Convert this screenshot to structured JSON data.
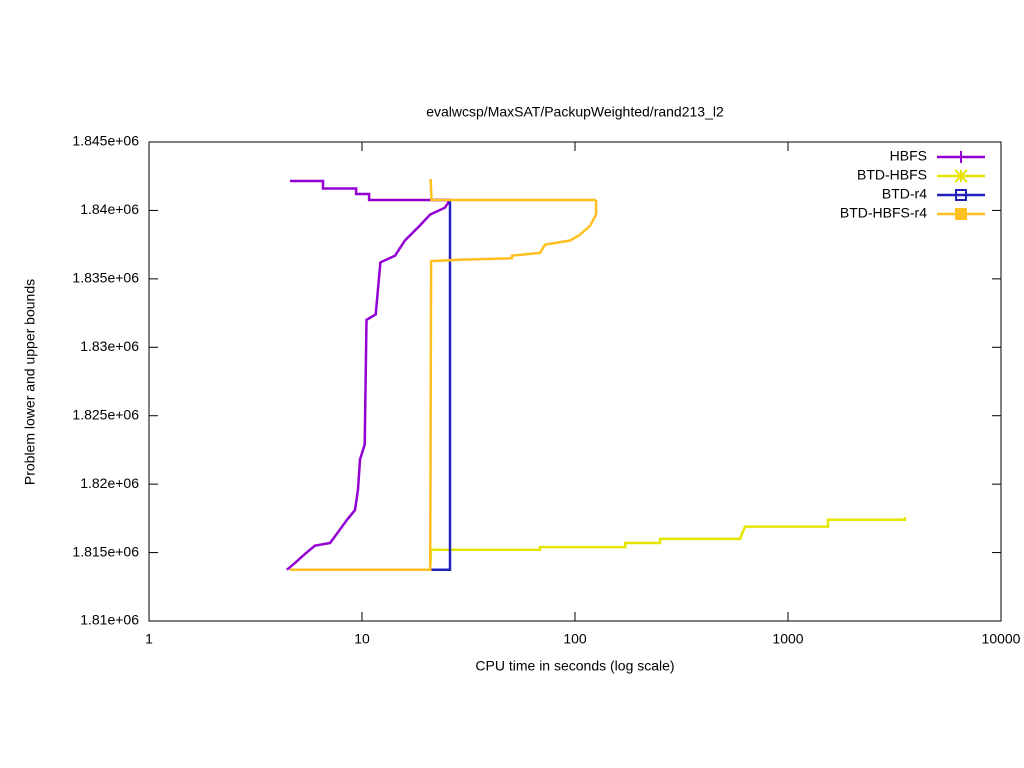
{
  "chart_data": {
    "type": "line",
    "title": "evalwcsp/MaxSAT/PackupWeighted/rand213_l2",
    "x_label": "CPU time in seconds (log scale)",
    "y_label": "Problem lower and upper bounds",
    "xlog": true,
    "xlim": [
      1,
      10000
    ],
    "xticks": [
      1,
      10,
      100,
      1000,
      10000
    ],
    "ylim": [
      1810000,
      1845000
    ],
    "yticks": [
      {
        "value": 1810000,
        "label": "1.81e+06"
      },
      {
        "value": 1815000,
        "label": "1.815e+06"
      },
      {
        "value": 1820000,
        "label": "1.82e+06"
      },
      {
        "value": 1825000,
        "label": "1.825e+06"
      },
      {
        "value": 1830000,
        "label": "1.83e+06"
      },
      {
        "value": 1835000,
        "label": "1.835e+06"
      },
      {
        "value": 1840000,
        "label": "1.84e+06"
      },
      {
        "value": 1845000,
        "label": "1.845e+06"
      }
    ],
    "legend": "top-right",
    "series": [
      {
        "name": "HBFS",
        "color": "#9400d3",
        "x": [
          4.59,
          6.56,
          6.56,
          9.38,
          9.38,
          10.8,
          10.8,
          25.9,
          null,
          4.44,
          4.85,
          5.4,
          6.01,
          7.08,
          7.89,
          8.51,
          9.27,
          9.58,
          9.79,
          10.3,
          10.5,
          11.6,
          12.2,
          14.3,
          15.9,
          18.7,
          20.9,
          24.5,
          25.9
        ],
        "values": [
          1842150,
          1842150,
          1841600,
          1841600,
          1841200,
          1841200,
          1840760,
          1840760,
          null,
          1813740,
          1814250,
          1814900,
          1815500,
          1815700,
          1816700,
          1817400,
          1818100,
          1819600,
          1821800,
          1822900,
          1832000,
          1832400,
          1836200,
          1836700,
          1837800,
          1838900,
          1839700,
          1840200,
          1840760
        ]
      },
      {
        "name": "BTD-HBFS",
        "color": "#e5e500",
        "x": [
          4.6,
          20.9,
          21.1,
          68.5,
          68.5,
          172,
          172,
          251,
          251,
          595,
          628,
          1541,
          1541,
          3540,
          3540
        ],
        "values": [
          1813750,
          1813750,
          1815200,
          1815200,
          1815400,
          1815400,
          1815700,
          1815700,
          1816000,
          1816000,
          1816900,
          1816900,
          1817400,
          1817400,
          1817600
        ]
      },
      {
        "name": "BTD-r4",
        "color": "#2222bb",
        "x": [
          4.6,
          25.9,
          25.9,
          21.2
        ],
        "values": [
          1813750,
          1813750,
          1840760,
          1840760
        ]
      },
      {
        "name": "BTD-HBFS-r4",
        "color": "#ffc020",
        "x": [
          21.0,
          21.2,
          125.6,
          null,
          4.6,
          20.9,
          21.1,
          28.8,
          50.6,
          50.6,
          68.5,
          72.3,
          94.8,
          105,
          118,
          125.6,
          125.6
        ],
        "values": [
          1842300,
          1840760,
          1840760,
          null,
          1813750,
          1813750,
          1836300,
          1836400,
          1836500,
          1836700,
          1836900,
          1837500,
          1837800,
          1838200,
          1838900,
          1839700,
          1840760
        ]
      }
    ]
  }
}
